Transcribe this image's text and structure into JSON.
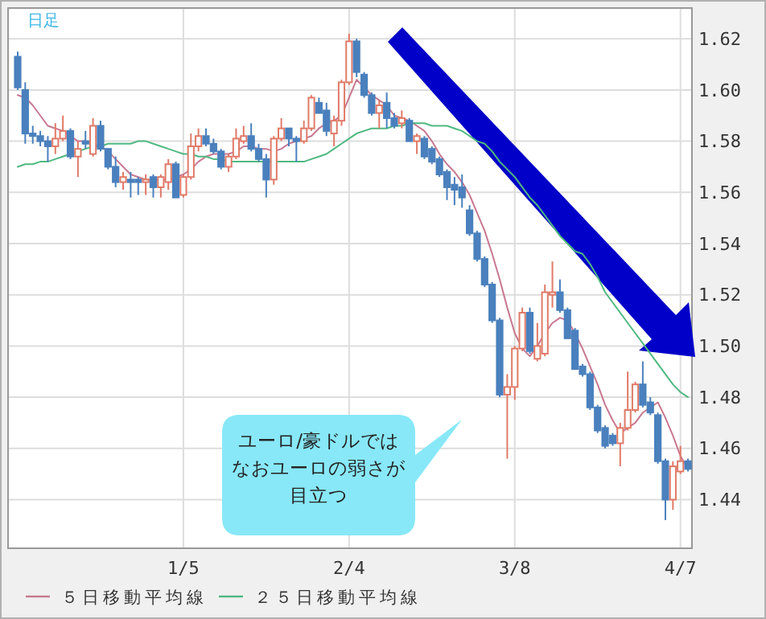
{
  "chart_data": {
    "type": "candlestick",
    "title": "日足",
    "categories": [
      null,
      null,
      null,
      null,
      null,
      null,
      null,
      null,
      null,
      null,
      null,
      null,
      null,
      null,
      null,
      null,
      null,
      null,
      null,
      null,
      null,
      null,
      "1/5",
      null,
      null,
      null,
      null,
      null,
      null,
      null,
      null,
      null,
      null,
      null,
      null,
      null,
      null,
      null,
      null,
      null,
      null,
      null,
      null,
      null,
      "2/4",
      null,
      null,
      null,
      null,
      null,
      null,
      null,
      null,
      null,
      null,
      null,
      null,
      null,
      null,
      null,
      null,
      null,
      null,
      null,
      null,
      null,
      "3/8",
      null,
      null,
      null,
      null,
      null,
      null,
      null,
      null,
      null,
      null,
      null,
      null,
      null,
      null,
      null,
      null,
      null,
      null,
      null,
      null,
      null,
      "4/7",
      null
    ],
    "ohlc": [
      [
        1.613,
        1.615,
        1.6,
        1.601
      ],
      [
        1.6,
        1.603,
        1.579,
        1.583
      ],
      [
        1.583,
        1.586,
        1.579,
        1.582
      ],
      [
        1.582,
        1.584,
        1.578,
        1.58
      ],
      [
        1.58,
        1.582,
        1.572,
        1.578
      ],
      [
        1.578,
        1.587,
        1.575,
        1.581
      ],
      [
        1.581,
        1.59,
        1.58,
        1.584
      ],
      [
        1.584,
        1.585,
        1.573,
        1.574
      ],
      [
        1.574,
        1.58,
        1.566,
        1.577
      ],
      [
        1.58,
        1.584,
        1.577,
        1.579
      ],
      [
        1.575,
        1.589,
        1.574,
        1.586
      ],
      [
        1.586,
        1.588,
        1.576,
        1.577
      ],
      [
        1.577,
        1.577,
        1.569,
        1.57
      ],
      [
        1.57,
        1.574,
        1.562,
        1.564
      ],
      [
        1.564,
        1.568,
        1.561,
        1.566
      ],
      [
        1.565,
        1.568,
        1.558,
        1.564
      ],
      [
        1.565,
        1.566,
        1.559,
        1.564
      ],
      [
        1.564,
        1.567,
        1.559,
        1.565
      ],
      [
        1.566,
        1.567,
        1.558,
        1.562
      ],
      [
        1.562,
        1.567,
        1.558,
        1.566
      ],
      [
        1.564,
        1.573,
        1.561,
        1.571
      ],
      [
        1.571,
        1.572,
        1.558,
        1.558
      ],
      [
        1.559,
        1.567,
        1.558,
        1.566
      ],
      [
        1.566,
        1.583,
        1.565,
        1.578
      ],
      [
        1.578,
        1.585,
        1.576,
        1.582
      ],
      [
        1.582,
        1.585,
        1.578,
        1.579
      ],
      [
        1.579,
        1.581,
        1.575,
        1.576
      ],
      [
        1.576,
        1.577,
        1.569,
        1.57
      ],
      [
        1.57,
        1.575,
        1.568,
        1.574
      ],
      [
        1.574,
        1.585,
        1.573,
        1.581
      ],
      [
        1.58,
        1.586,
        1.579,
        1.582
      ],
      [
        1.582,
        1.587,
        1.576,
        1.577
      ],
      [
        1.577,
        1.579,
        1.572,
        1.573
      ],
      [
        1.573,
        1.575,
        1.558,
        1.565
      ],
      [
        1.565,
        1.582,
        1.563,
        1.581
      ],
      [
        1.581,
        1.589,
        1.58,
        1.585
      ],
      [
        1.585,
        1.585,
        1.578,
        1.581
      ],
      [
        1.581,
        1.582,
        1.572,
        1.58
      ],
      [
        1.58,
        1.588,
        1.579,
        1.585
      ],
      [
        1.585,
        1.598,
        1.584,
        1.597
      ],
      [
        1.595,
        1.597,
        1.591,
        1.591
      ],
      [
        1.592,
        1.595,
        1.582,
        1.584
      ],
      [
        1.583,
        1.59,
        1.578,
        1.588
      ],
      [
        1.588,
        1.604,
        1.586,
        1.603
      ],
      [
        1.603,
        1.622,
        1.602,
        1.619
      ],
      [
        1.619,
        1.62,
        1.605,
        1.607
      ],
      [
        1.606,
        1.607,
        1.597,
        1.598
      ],
      [
        1.598,
        1.599,
        1.59,
        1.591
      ],
      [
        1.591,
        1.596,
        1.585,
        1.594
      ],
      [
        1.595,
        1.599,
        1.585,
        1.589
      ],
      [
        1.589,
        1.591,
        1.585,
        1.586
      ],
      [
        1.587,
        1.592,
        1.585,
        1.589
      ],
      [
        1.588,
        1.589,
        1.58,
        1.58
      ],
      [
        1.58,
        1.583,
        1.575,
        1.582
      ],
      [
        1.581,
        1.582,
        1.573,
        1.574
      ],
      [
        1.577,
        1.578,
        1.571,
        1.572
      ],
      [
        1.573,
        1.574,
        1.566,
        1.567
      ],
      [
        1.568,
        1.569,
        1.557,
        1.562
      ],
      [
        1.563,
        1.566,
        1.555,
        1.561
      ],
      [
        1.562,
        1.567,
        1.554,
        1.558
      ],
      [
        1.553,
        1.555,
        1.543,
        1.544
      ],
      [
        1.544,
        1.545,
        1.533,
        1.534
      ],
      [
        1.534,
        1.535,
        1.523,
        1.524
      ],
      [
        1.524,
        1.525,
        1.509,
        1.51
      ],
      [
        1.51,
        1.511,
        1.48,
        1.481
      ],
      [
        1.481,
        1.489,
        1.456,
        1.484
      ],
      [
        1.484,
        1.5,
        1.479,
        1.499
      ],
      [
        1.499,
        1.515,
        1.498,
        1.513
      ],
      [
        1.513,
        1.515,
        1.497,
        1.498
      ],
      [
        1.495,
        1.509,
        1.494,
        1.5
      ],
      [
        1.497,
        1.524,
        1.496,
        1.521
      ],
      [
        1.52,
        1.533,
        1.515,
        1.521
      ],
      [
        1.521,
        1.526,
        1.513,
        1.514
      ],
      [
        1.514,
        1.515,
        1.503,
        1.503
      ],
      [
        1.506,
        1.507,
        1.491,
        1.491
      ],
      [
        1.492,
        1.493,
        1.488,
        1.489
      ],
      [
        1.489,
        1.49,
        1.475,
        1.476
      ],
      [
        1.476,
        1.477,
        1.466,
        1.467
      ],
      [
        1.468,
        1.469,
        1.46,
        1.461
      ],
      [
        1.465,
        1.466,
        1.461,
        1.462
      ],
      [
        1.462,
        1.47,
        1.453,
        1.468
      ],
      [
        1.468,
        1.49,
        1.467,
        1.475
      ],
      [
        1.475,
        1.486,
        1.474,
        1.485
      ],
      [
        1.485,
        1.494,
        1.476,
        1.477
      ],
      [
        1.478,
        1.48,
        1.473,
        1.474
      ],
      [
        1.473,
        1.474,
        1.454,
        1.455
      ],
      [
        1.455,
        1.456,
        1.432,
        1.44
      ],
      [
        1.44,
        1.455,
        1.436,
        1.453
      ],
      [
        1.451,
        1.461,
        1.45,
        1.455
      ],
      [
        1.455,
        1.456,
        1.451,
        1.452
      ]
    ],
    "colors": [
      "#4a80bd",
      "#4a80bd",
      "#4a80bd",
      "#4a80bd",
      "#4a80bd",
      "#e07a68",
      "#e07a68",
      "#4a80bd",
      "#e07a68",
      "#4a80bd",
      "#e07a68",
      "#4a80bd",
      "#4a80bd",
      "#4a80bd",
      "#e07a68",
      "#4a80bd",
      "#4a80bd",
      "#e07a68",
      "#4a80bd",
      "#e07a68",
      "#e07a68",
      "#4a80bd",
      "#e07a68",
      "#e07a68",
      "#e07a68",
      "#4a80bd",
      "#4a80bd",
      "#4a80bd",
      "#e07a68",
      "#e07a68",
      "#e07a68",
      "#4a80bd",
      "#4a80bd",
      "#4a80bd",
      "#e07a68",
      "#e07a68",
      "#4a80bd",
      "#4a80bd",
      "#e07a68",
      "#e07a68",
      "#4a80bd",
      "#4a80bd",
      "#e07a68",
      "#e07a68",
      "#e07a68",
      "#4a80bd",
      "#4a80bd",
      "#4a80bd",
      "#e07a68",
      "#4a80bd",
      "#4a80bd",
      "#e07a68",
      "#4a80bd",
      "#e07a68",
      "#4a80bd",
      "#4a80bd",
      "#4a80bd",
      "#4a80bd",
      "#4a80bd",
      "#4a80bd",
      "#4a80bd",
      "#4a80bd",
      "#4a80bd",
      "#4a80bd",
      "#4a80bd",
      "#e07a68",
      "#e07a68",
      "#e07a68",
      "#4a80bd",
      "#e07a68",
      "#e07a68",
      "#e07a68",
      "#4a80bd",
      "#4a80bd",
      "#4a80bd",
      "#4a80bd",
      "#4a80bd",
      "#4a80bd",
      "#4a80bd",
      "#4a80bd",
      "#e07a68",
      "#e07a68",
      "#e07a68",
      "#4a80bd",
      "#4a80bd",
      "#4a80bd",
      "#4a80bd",
      "#e07a68",
      "#e07a68",
      "#4a80bd"
    ],
    "series": [
      {
        "name": "５日移動平均線",
        "type": "line",
        "color": "#c87890",
        "values": [
          1.598,
          1.597,
          1.594,
          1.59,
          1.586,
          1.585,
          1.584,
          1.582,
          1.58,
          1.58,
          1.579,
          1.578,
          1.576,
          1.573,
          1.57,
          1.567,
          1.566,
          1.565,
          1.565,
          1.565,
          1.565,
          1.566,
          1.567,
          1.569,
          1.572,
          1.574,
          1.575,
          1.575,
          1.575,
          1.576,
          1.578,
          1.578,
          1.577,
          1.577,
          1.576,
          1.577,
          1.579,
          1.58,
          1.581,
          1.582,
          1.585,
          1.587,
          1.588,
          1.59,
          1.597,
          1.604,
          1.601,
          1.598,
          1.596,
          1.594,
          1.59,
          1.589,
          1.588,
          1.586,
          1.584,
          1.58,
          1.575,
          1.571,
          1.568,
          1.564,
          1.559,
          1.552,
          1.545,
          1.536,
          1.526,
          1.515,
          1.505,
          1.499,
          1.496,
          1.5,
          1.505,
          1.509,
          1.511,
          1.51,
          1.505,
          1.499,
          1.492,
          1.485,
          1.477,
          1.471,
          1.466,
          1.468,
          1.47,
          1.474,
          1.476,
          1.478,
          1.472,
          1.465,
          1.457,
          1.452
        ]
      },
      {
        "name": "２５日移動平均線",
        "type": "line",
        "color": "#50b880",
        "values": [
          1.57,
          1.571,
          1.571,
          1.572,
          1.572,
          1.573,
          1.574,
          1.575,
          1.576,
          1.577,
          1.578,
          1.578,
          1.579,
          1.579,
          1.579,
          1.579,
          1.58,
          1.58,
          1.579,
          1.578,
          1.577,
          1.576,
          1.575,
          1.575,
          1.574,
          1.574,
          1.573,
          1.573,
          1.572,
          1.572,
          1.572,
          1.572,
          1.572,
          1.572,
          1.572,
          1.572,
          1.572,
          1.572,
          1.572,
          1.573,
          1.574,
          1.575,
          1.577,
          1.579,
          1.581,
          1.583,
          1.584,
          1.585,
          1.585,
          1.585,
          1.586,
          1.586,
          1.587,
          1.587,
          1.587,
          1.586,
          1.586,
          1.586,
          1.585,
          1.584,
          1.582,
          1.58,
          1.579,
          1.576,
          1.572,
          1.569,
          1.566,
          1.562,
          1.558,
          1.555,
          1.551,
          1.547,
          1.543,
          1.54,
          1.537,
          1.536,
          1.532,
          1.527,
          1.521,
          1.517,
          1.513,
          1.509,
          1.505,
          1.501,
          1.497,
          1.493,
          1.489,
          1.485,
          1.482,
          1.48
        ]
      }
    ],
    "ylim": [
      1.421,
      1.632
    ],
    "yticks": [
      {
        "value": 1.44,
        "label": "1.44"
      },
      {
        "value": 1.46,
        "label": "1.46"
      },
      {
        "value": 1.48,
        "label": "1.48"
      },
      {
        "value": 1.5,
        "label": "1.50"
      },
      {
        "value": 1.52,
        "label": "1.52"
      },
      {
        "value": 1.54,
        "label": "1.54"
      },
      {
        "value": 1.56,
        "label": "1.56"
      },
      {
        "value": 1.58,
        "label": "1.58"
      },
      {
        "value": 1.6,
        "label": "1.60"
      },
      {
        "value": 1.62,
        "label": "1.62"
      }
    ],
    "grid": true,
    "legend": "bottom left",
    "annotations": [
      "ユーロ/豪ドルではなおユーロの弱さが目立つ"
    ]
  }
}
